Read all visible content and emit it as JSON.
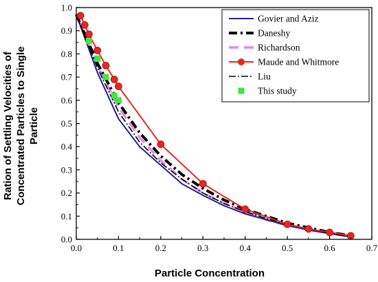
{
  "chart_data": {
    "type": "line",
    "title": "",
    "xlabel": "Particle Concentration",
    "ylabel_lines": [
      "Ration of Settling Velocities of",
      "Concentrated Particles to Single",
      "Particle"
    ],
    "xlim": [
      0.0,
      0.7
    ],
    "ylim": [
      0.0,
      1.0
    ],
    "x_ticks": [
      "0.0",
      "0.1",
      "0.2",
      "0.3",
      "0.4",
      "0.5",
      "0.6",
      "0.7"
    ],
    "y_ticks": [
      "0.0",
      "0.1",
      "0.2",
      "0.3",
      "0.4",
      "0.5",
      "0.6",
      "0.7",
      "0.8",
      "0.9",
      "1.0"
    ],
    "legend_position": "top-right",
    "series": [
      {
        "name": "Govier and Aziz",
        "color": "#1f1f8f",
        "style": "solid",
        "x": [
          0.0,
          0.05,
          0.1,
          0.15,
          0.2,
          0.25,
          0.3,
          0.35,
          0.4,
          0.45,
          0.5,
          0.55,
          0.6,
          0.65
        ],
        "y": [
          0.97,
          0.72,
          0.52,
          0.4,
          0.32,
          0.24,
          0.19,
          0.145,
          0.11,
          0.085,
          0.06,
          0.04,
          0.025,
          0.01
        ]
      },
      {
        "name": "Daneshy",
        "color": "#000000",
        "style": "dashdot-thick",
        "x": [
          0.0,
          0.05,
          0.1,
          0.15,
          0.2,
          0.25,
          0.3,
          0.35,
          0.4,
          0.45,
          0.5,
          0.55,
          0.6,
          0.65
        ],
        "y": [
          0.97,
          0.76,
          0.59,
          0.46,
          0.36,
          0.28,
          0.22,
          0.17,
          0.13,
          0.1,
          0.07,
          0.05,
          0.03,
          0.015
        ]
      },
      {
        "name": "Richardson",
        "color": "#e58ae0",
        "style": "dashed-thick",
        "x": [
          0.0,
          0.05,
          0.1,
          0.15,
          0.2,
          0.25,
          0.3,
          0.35,
          0.4,
          0.45,
          0.5,
          0.55,
          0.6,
          0.65
        ],
        "y": [
          0.97,
          0.75,
          0.57,
          0.44,
          0.34,
          0.26,
          0.2,
          0.155,
          0.12,
          0.085,
          0.06,
          0.045,
          0.03,
          0.02
        ]
      },
      {
        "name": "Maude and Whitmore",
        "color": "#e8271f",
        "style": "solid-markers",
        "x": [
          0.01,
          0.02,
          0.03,
          0.05,
          0.07,
          0.09,
          0.1,
          0.2,
          0.3,
          0.4,
          0.5,
          0.55,
          0.6,
          0.65
        ],
        "y": [
          0.965,
          0.925,
          0.885,
          0.815,
          0.75,
          0.69,
          0.66,
          0.41,
          0.24,
          0.13,
          0.065,
          0.045,
          0.03,
          0.015
        ]
      },
      {
        "name": "Liu",
        "color": "#000000",
        "style": "dashdot",
        "x": [
          0.0,
          0.05,
          0.1,
          0.15,
          0.2,
          0.25,
          0.3,
          0.35,
          0.4,
          0.45,
          0.5,
          0.55,
          0.6,
          0.65
        ],
        "y": [
          0.97,
          0.74,
          0.55,
          0.42,
          0.33,
          0.26,
          0.2,
          0.155,
          0.12,
          0.09,
          0.065,
          0.045,
          0.03,
          0.015
        ]
      },
      {
        "name": "This study",
        "color": "#3ee83e",
        "style": "markers",
        "x": [
          0.03,
          0.05,
          0.07,
          0.09,
          0.1
        ],
        "y": [
          0.855,
          0.78,
          0.7,
          0.62,
          0.6
        ]
      }
    ]
  }
}
